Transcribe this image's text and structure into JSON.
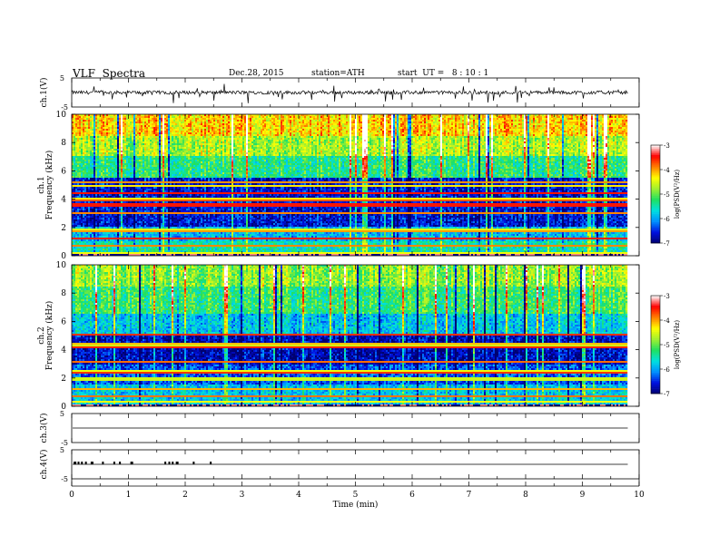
{
  "header": {
    "title": "VLF  Spectra",
    "date": "Dec.28, 2015",
    "station": "station=ATH",
    "start": "start  UT =   8 : 10 : 1"
  },
  "chart_data": [
    {
      "type": "line",
      "name": "ch1-waveform",
      "ylabel": "ch.1(V)",
      "ylim": [
        -5,
        5
      ],
      "yticks": [
        "5",
        "-5"
      ],
      "baseline": 0,
      "xlim": [
        0,
        10
      ],
      "data_end_min": 9.8
    },
    {
      "type": "heatmap",
      "name": "ch1-spectrogram",
      "ylabel": "ch.1\nFrequency  (kHz)",
      "ylabel_lines": [
        "ch.1",
        "Frequency  (kHz)"
      ],
      "ylim": [
        0,
        10
      ],
      "yticks": [
        "0",
        "2",
        "4",
        "6",
        "8",
        "10"
      ],
      "xlim": [
        0,
        9.8
      ],
      "colorbar": {
        "label": "log(PSD(V²/Hz)",
        "range": [
          -7,
          -3
        ],
        "ticks": [
          "-3",
          "-4",
          "-5",
          "-6",
          "-7"
        ]
      },
      "bands_khz": [
        {
          "from": 0,
          "to": 1.0,
          "level": -5.5
        },
        {
          "from": 1.0,
          "to": 2.0,
          "level": -5.9
        },
        {
          "from": 2.0,
          "to": 5.5,
          "level": -6.6
        },
        {
          "from": 5.5,
          "to": 7.0,
          "level": -5.3
        },
        {
          "from": 7.0,
          "to": 8.5,
          "level": -4.7
        },
        {
          "from": 8.5,
          "to": 10.0,
          "level": -4.2
        }
      ]
    },
    {
      "type": "heatmap",
      "name": "ch2-spectrogram",
      "ylabel": "ch.2\nFrequency  (kHz)",
      "ylabel_lines": [
        "ch.2",
        "Frequency  (kHz)"
      ],
      "ylim": [
        0,
        10
      ],
      "yticks": [
        "0",
        "2",
        "4",
        "6",
        "8",
        "10"
      ],
      "xlim": [
        0,
        9.8
      ],
      "colorbar": {
        "label": "log(PSD(V²/Hz)",
        "range": [
          -7,
          -3
        ],
        "ticks": [
          "-3",
          "-4",
          "-5",
          "-6",
          "-7"
        ]
      },
      "bands_khz": [
        {
          "from": 0,
          "to": 1.5,
          "level": -5.8
        },
        {
          "from": 1.5,
          "to": 3.0,
          "level": -6.3
        },
        {
          "from": 3.0,
          "to": 5.0,
          "level": -6.7
        },
        {
          "from": 5.0,
          "to": 6.5,
          "level": -5.8
        },
        {
          "from": 6.5,
          "to": 8.5,
          "level": -5.2
        },
        {
          "from": 8.5,
          "to": 10.0,
          "level": -4.8
        }
      ]
    },
    {
      "type": "line",
      "name": "ch3-waveform",
      "ylabel": "ch.3(V)",
      "ylim": [
        -5,
        5
      ],
      "yticks": [
        "5",
        "-5"
      ],
      "baseline": 0,
      "xlim": [
        0,
        10
      ]
    },
    {
      "type": "line",
      "name": "ch4-waveform",
      "ylabel": "ch.4(V)",
      "ylim": [
        -5,
        5
      ],
      "yticks": [
        "5",
        "-5"
      ],
      "baseline": 0,
      "pulse_times_min": [
        0.05,
        0.12,
        0.18,
        0.25,
        0.35,
        0.55,
        0.75,
        0.85,
        1.05,
        1.65,
        1.72,
        1.78,
        1.85,
        2.15,
        2.45
      ],
      "xlim": [
        0,
        10
      ]
    }
  ],
  "x_axis": {
    "label": "Time  (min)",
    "ticks": [
      "0",
      "1",
      "2",
      "3",
      "4",
      "5",
      "6",
      "7",
      "8",
      "9",
      "10"
    ]
  },
  "colors": {
    "scale": [
      "#000070",
      "#0010e0",
      "#0090ff",
      "#00e0e0",
      "#20e060",
      "#a0f030",
      "#ffff00",
      "#ff8000",
      "#ff0000",
      "#ffffff"
    ]
  }
}
